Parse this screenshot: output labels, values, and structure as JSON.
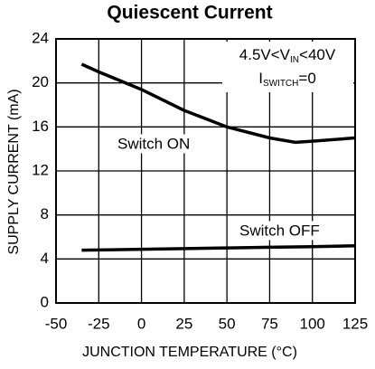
{
  "chart_data": {
    "type": "line",
    "title": "Quiescent Current",
    "x_label": "JUNCTION TEMPERATURE (°C)",
    "y_label": "SUPPLY CURRENT (mA)",
    "annotation_1": [
      "4.5V<V",
      "IN",
      "<40V"
    ],
    "annotation_2": [
      "I",
      "SWITCH",
      "=0"
    ],
    "x": [
      -35,
      -25,
      0,
      25,
      50,
      75,
      90,
      100,
      125
    ],
    "series": [
      {
        "name": "Switch ON",
        "color": "#000000",
        "values": [
          21.7,
          21.0,
          19.4,
          17.5,
          16.0,
          15.0,
          14.6,
          14.7,
          15.0
        ]
      },
      {
        "name": "Switch OFF",
        "color": "#000000",
        "values": [
          4.8,
          4.82,
          4.88,
          4.94,
          5.0,
          5.06,
          5.1,
          5.12,
          5.2
        ]
      }
    ],
    "xlim": [
      -50,
      125
    ],
    "xticks": [
      -50,
      -25,
      0,
      25,
      50,
      75,
      100,
      125
    ],
    "ylim": [
      0,
      24
    ],
    "yticks": [
      0,
      4,
      8,
      12,
      16,
      20,
      24
    ],
    "grid": true
  }
}
